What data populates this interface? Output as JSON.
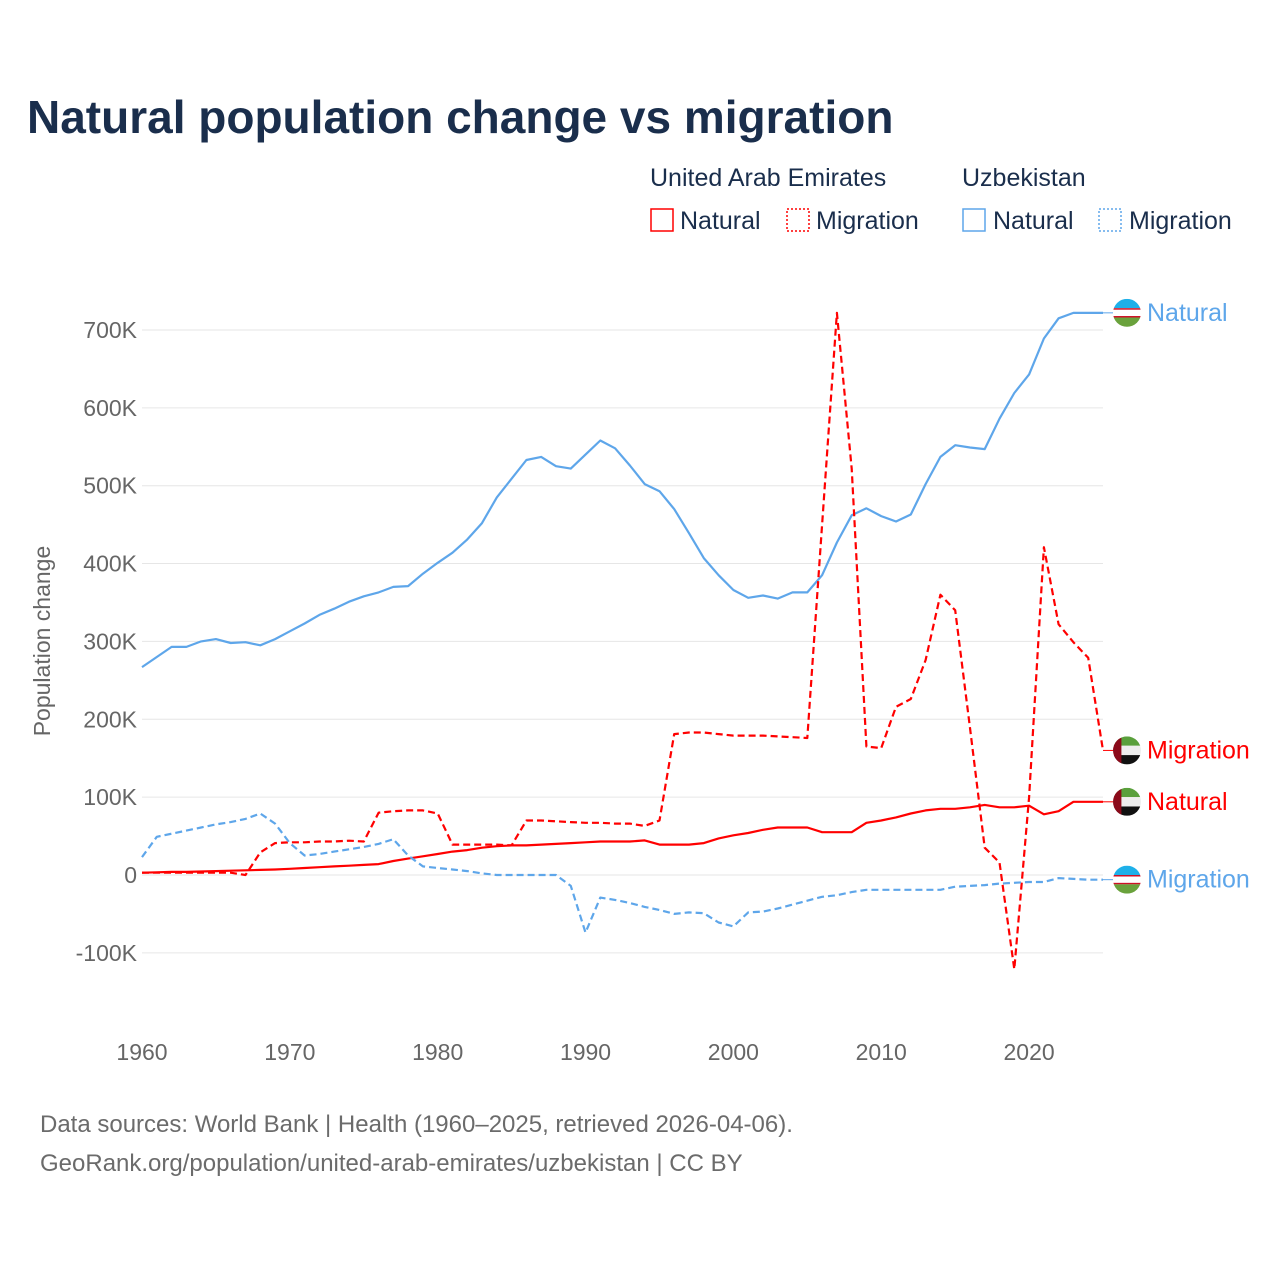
{
  "colors": {
    "uae": "#ff0000",
    "uzb": "#5ea6ea",
    "title": "#1a2e4c"
  },
  "chart_data": {
    "type": "line",
    "title": "Natural population change vs migration",
    "xlabel": "",
    "ylabel": "Population change",
    "xlim": [
      1960,
      2025
    ],
    "ylim": [
      -150000,
      750000
    ],
    "grid": true,
    "legend_placement": "top-right",
    "x_ticks": [
      "1960",
      "1970",
      "1980",
      "1990",
      "2000",
      "2010",
      "2020"
    ],
    "y_ticks": [
      {
        "value": -100000,
        "label": "-100K"
      },
      {
        "value": 0,
        "label": "0"
      },
      {
        "value": 100000,
        "label": "100K"
      },
      {
        "value": 200000,
        "label": "200K"
      },
      {
        "value": 300000,
        "label": "300K"
      },
      {
        "value": 400000,
        "label": "400K"
      },
      {
        "value": 500000,
        "label": "500K"
      },
      {
        "value": 600000,
        "label": "600K"
      },
      {
        "value": 700000,
        "label": "700K"
      }
    ],
    "legend": {
      "groups": [
        {
          "country": "United Arab Emirates",
          "items": [
            "Natural",
            "Migration"
          ]
        },
        {
          "country": "Uzbekistan",
          "items": [
            "Natural",
            "Migration"
          ]
        }
      ]
    },
    "x_start": 1960,
    "units": "thousands",
    "series": [
      {
        "name": "Uzbekistan Natural",
        "country": "Uzbekistan",
        "kind": "Natural",
        "end_label": "Natural",
        "color": "#5ea6ea",
        "dash": false,
        "values": [
          267,
          280,
          293,
          293,
          300,
          303,
          298,
          299,
          295,
          303,
          313,
          323,
          334,
          342,
          351,
          358,
          363,
          370,
          371,
          387,
          401,
          414,
          431,
          452,
          485,
          509,
          533,
          537,
          525,
          522,
          540,
          558,
          548,
          526,
          502,
          493,
          470,
          439,
          407,
          385,
          366,
          356,
          359,
          355,
          363,
          363,
          385,
          427,
          462,
          471,
          461,
          454,
          463,
          502,
          537,
          552,
          549,
          547,
          586,
          619,
          643,
          689,
          715,
          722,
          722,
          722
        ]
      },
      {
        "name": "United Arab Emirates Migration",
        "country": "United Arab Emirates",
        "kind": "Migration",
        "end_label": "Migration",
        "color": "#ff0000",
        "dash": true,
        "values": [
          3,
          3,
          3,
          3,
          3,
          3,
          3,
          0,
          29,
          41,
          42,
          42,
          43,
          43,
          44,
          43,
          80,
          82,
          83,
          83,
          79,
          39,
          39,
          39,
          39,
          38,
          70,
          70,
          69,
          68,
          67,
          67,
          66,
          66,
          63,
          70,
          181,
          183,
          183,
          181,
          179,
          179,
          179,
          178,
          177,
          176,
          450,
          722,
          522,
          165,
          163,
          216,
          226,
          276,
          360,
          340,
          190,
          35,
          16,
          -121,
          100,
          421,
          322,
          299,
          279,
          160
        ]
      },
      {
        "name": "United Arab Emirates Natural",
        "country": "United Arab Emirates",
        "kind": "Natural",
        "end_label": "Natural",
        "color": "#ff0000",
        "dash": false,
        "values": [
          3,
          3.5,
          4,
          4,
          4.5,
          5,
          5.5,
          6,
          6.5,
          7,
          8,
          9,
          10,
          11,
          12,
          13,
          14,
          18,
          21,
          24,
          27,
          30,
          32,
          35,
          37,
          38,
          38,
          39,
          40,
          41,
          42,
          43,
          43,
          43,
          44.5,
          39,
          39,
          39,
          41,
          47,
          51,
          54,
          58,
          61,
          61,
          61,
          55,
          55,
          55,
          67,
          70,
          74,
          79,
          83,
          85,
          85,
          87,
          90,
          87,
          87,
          89,
          78,
          82,
          94,
          94,
          94
        ]
      },
      {
        "name": "Uzbekistan Migration",
        "country": "Uzbekistan",
        "kind": "Migration",
        "end_label": "Migration",
        "color": "#5ea6ea",
        "dash": true,
        "values": [
          23,
          49,
          53,
          57,
          61,
          65,
          68,
          72,
          79,
          66,
          41,
          25,
          27,
          30,
          33,
          36,
          40,
          46,
          25,
          11,
          9,
          7,
          5,
          2,
          0,
          0,
          0,
          0,
          0,
          -14,
          -74,
          -29,
          -32,
          -36,
          -41,
          -45,
          -50,
          -48,
          -49,
          -61,
          -66,
          -48,
          -47,
          -43,
          -38,
          -33,
          -28,
          -26,
          -22,
          -19,
          -19,
          -19,
          -19,
          -19,
          -19,
          -15,
          -14,
          -13,
          -11,
          -10,
          -9,
          -9,
          -4,
          -5,
          -6,
          -6
        ]
      }
    ]
  },
  "footer": {
    "line1": "Data sources: World Bank | Health (1960–2025, retrieved 2026-04-06).",
    "line2": "GeoRank.org/population/united-arab-emirates/uzbekistan | CC BY"
  }
}
